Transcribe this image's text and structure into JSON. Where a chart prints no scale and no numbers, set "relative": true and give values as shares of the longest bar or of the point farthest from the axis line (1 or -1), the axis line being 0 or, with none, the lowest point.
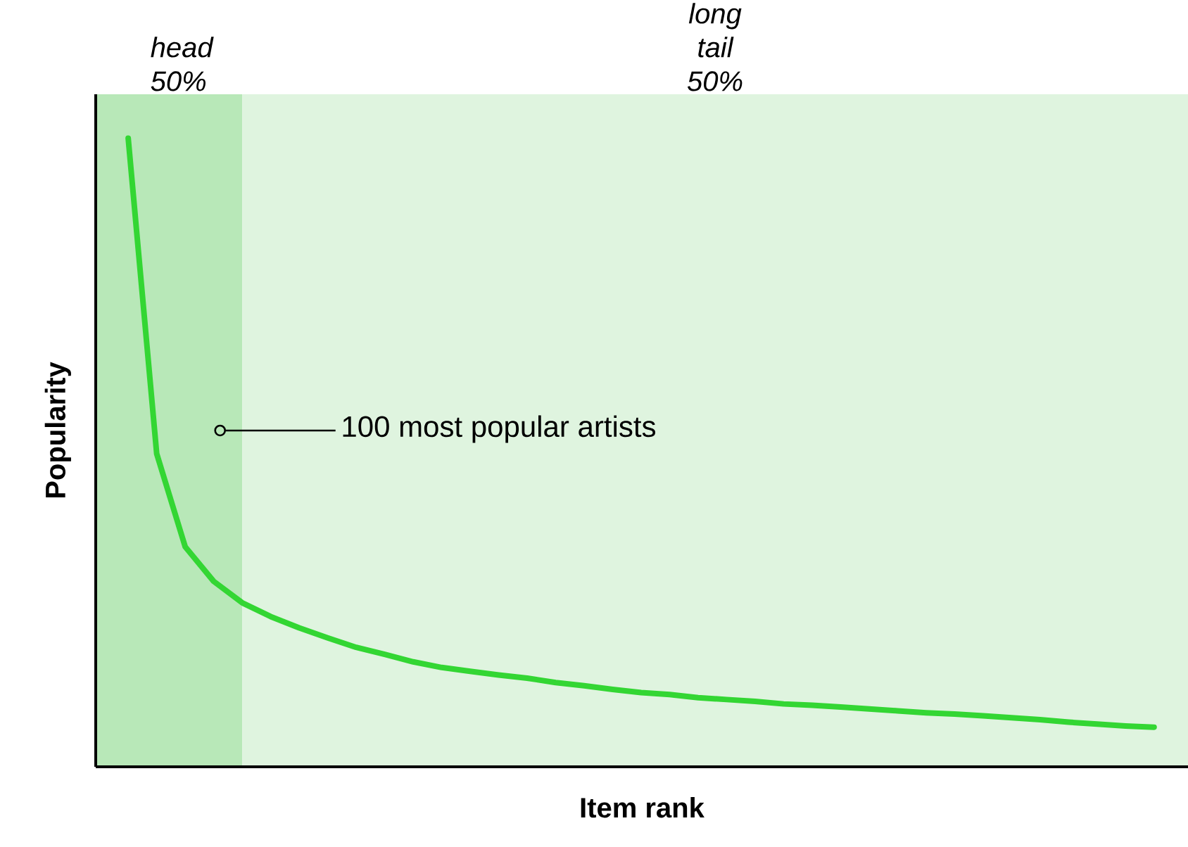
{
  "chart_data": {
    "type": "line",
    "relative": true,
    "xlabel": "Item rank",
    "ylabel": "Popularity",
    "categories": [
      null,
      null,
      null,
      null,
      null,
      null,
      null,
      null,
      null,
      null,
      null,
      null,
      null,
      null,
      null,
      null,
      null,
      null,
      null,
      null,
      null,
      null,
      null,
      null,
      null,
      null,
      null,
      null,
      null,
      null,
      null,
      null,
      null,
      null,
      null,
      null,
      null
    ],
    "series": [
      {
        "color": "#33d633",
        "values": [
          1.0,
          0.498,
          0.35,
          0.295,
          0.261,
          0.239,
          0.221,
          0.205,
          0.19,
          0.179,
          0.167,
          0.158,
          0.152,
          0.146,
          0.141,
          0.134,
          0.129,
          0.123,
          0.118,
          0.115,
          0.11,
          0.107,
          0.104,
          0.1,
          0.098,
          0.095,
          0.092,
          0.089,
          0.086,
          0.084,
          0.081,
          0.078,
          0.075,
          0.071,
          0.068,
          0.065,
          0.063
        ]
      }
    ],
    "annotations": [
      "100 most popular artists",
      "head 50%",
      "long tail 50%"
    ]
  }
}
